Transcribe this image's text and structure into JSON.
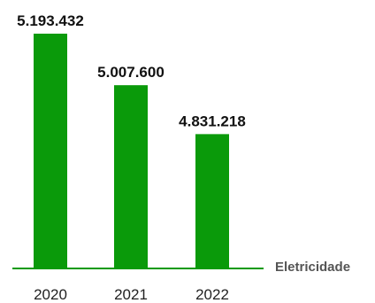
{
  "colors": {
    "bar": "#0a9a0a",
    "axis": "#0a9a0a",
    "background": "#ffffff"
  },
  "chart_data": {
    "type": "bar",
    "categories": [
      "2020",
      "2021",
      "2022"
    ],
    "series": [
      {
        "name": "Eletricidade",
        "values": [
          5193432,
          5007600,
          4831218
        ]
      }
    ],
    "data_labels": [
      "5.193.432",
      "5.007.600",
      "4.831.218"
    ],
    "baseline": 4350000,
    "ylim": [
      4350000,
      5193432
    ],
    "grid": false,
    "legend_placement": "right"
  }
}
